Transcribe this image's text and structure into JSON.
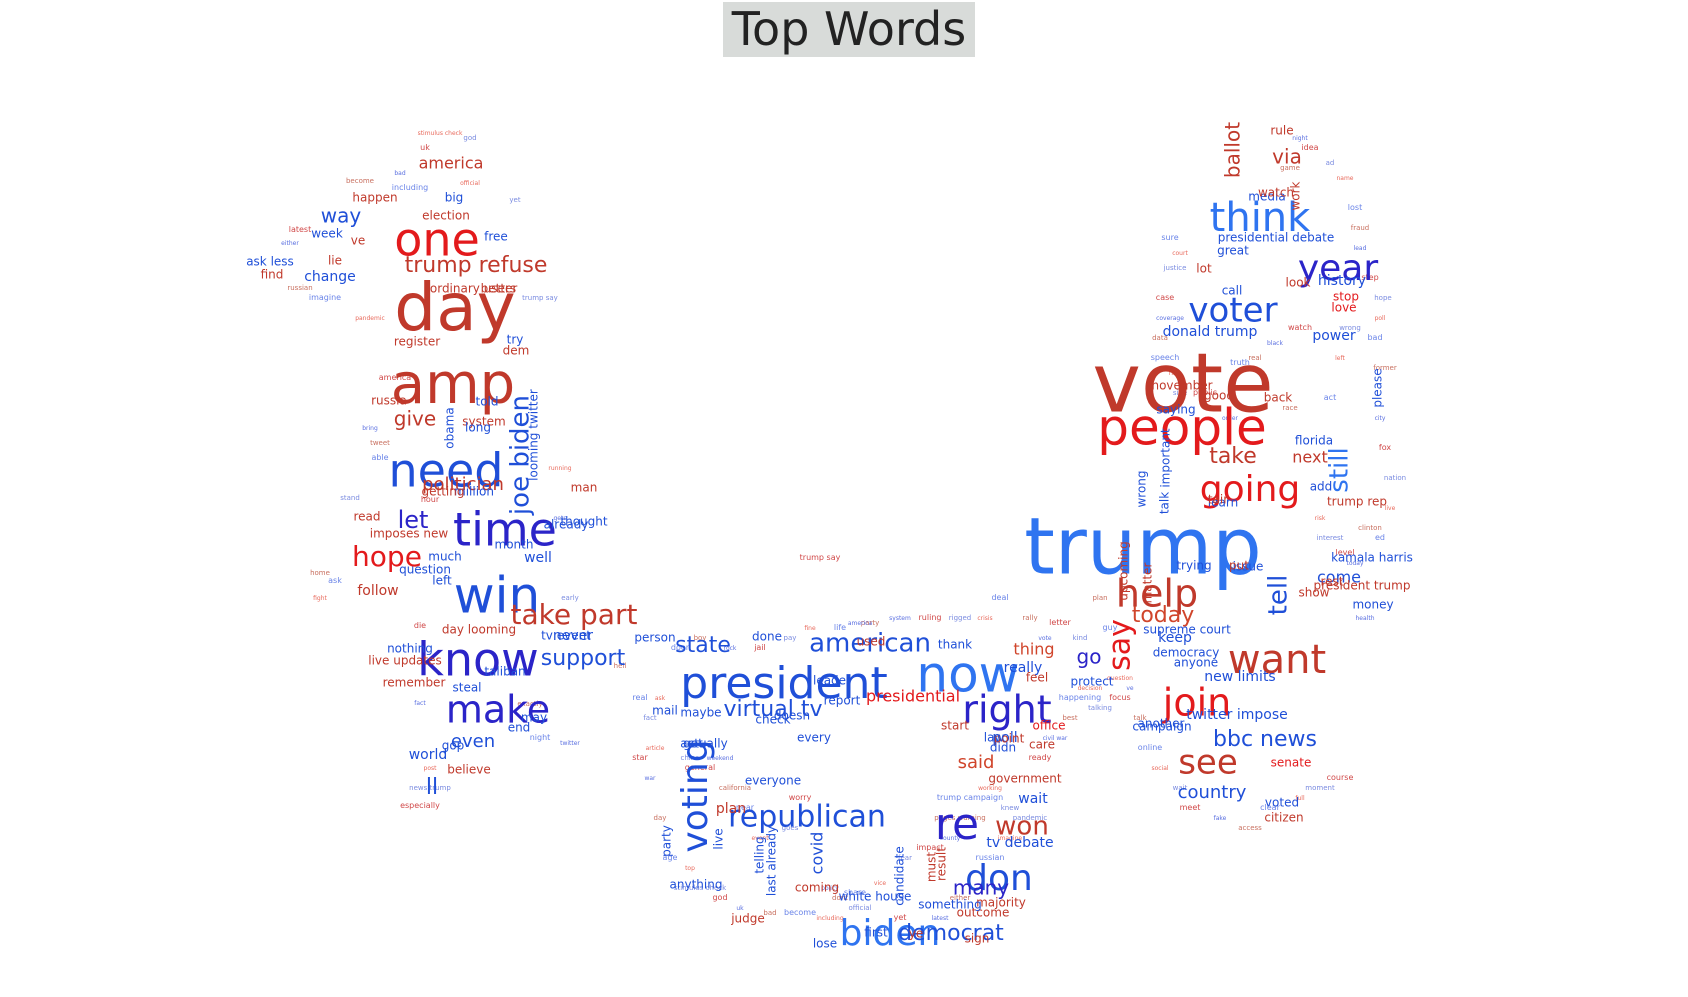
{
  "title": "Top Words",
  "colors": {
    "red": "#e31a1c",
    "darkred": "#c0392b",
    "blue": "#1f4fd8",
    "lightblue": "#2f74f0",
    "navy": "#2b24c8",
    "brick": "#d0452b"
  },
  "chart_data": {
    "type": "wordcloud",
    "title": "Top Words",
    "words": [
      {
        "text": "trump",
        "weight": 100,
        "color": "lightblue"
      },
      {
        "text": "vote",
        "weight": 90,
        "color": "darkred"
      },
      {
        "text": "day",
        "weight": 80,
        "color": "darkred"
      },
      {
        "text": "amp",
        "weight": 75,
        "color": "darkred"
      },
      {
        "text": "people",
        "weight": 70,
        "color": "red"
      },
      {
        "text": "president",
        "weight": 62,
        "color": "blue"
      },
      {
        "text": "now",
        "weight": 62,
        "color": "lightblue"
      },
      {
        "text": "need",
        "weight": 60,
        "color": "blue"
      },
      {
        "text": "time",
        "weight": 60,
        "color": "navy"
      },
      {
        "text": "win",
        "weight": 60,
        "color": "blue"
      },
      {
        "text": "know",
        "weight": 58,
        "color": "navy"
      },
      {
        "text": "one",
        "weight": 58,
        "color": "red"
      },
      {
        "text": "think",
        "weight": 55,
        "color": "lightblue"
      },
      {
        "text": "want",
        "weight": 52,
        "color": "darkred"
      },
      {
        "text": "help",
        "weight": 52,
        "color": "darkred"
      },
      {
        "text": "going",
        "weight": 52,
        "color": "red"
      },
      {
        "text": "re",
        "weight": 52,
        "color": "navy"
      },
      {
        "text": "year",
        "weight": 48,
        "color": "navy"
      },
      {
        "text": "voter",
        "weight": 46,
        "color": "blue"
      },
      {
        "text": "make",
        "weight": 46,
        "color": "navy"
      },
      {
        "text": "join",
        "weight": 46,
        "color": "red"
      },
      {
        "text": "voting",
        "weight": 46,
        "color": "blue"
      },
      {
        "text": "biden",
        "weight": 46,
        "color": "lightblue"
      },
      {
        "text": "right",
        "weight": 46,
        "color": "navy"
      },
      {
        "text": "don",
        "weight": 44,
        "color": "blue"
      },
      {
        "text": "see",
        "weight": 44,
        "color": "darkred"
      },
      {
        "text": "say",
        "weight": 42,
        "color": "red"
      },
      {
        "text": "take part",
        "weight": 40,
        "color": "darkred"
      },
      {
        "text": "joe biden",
        "weight": 36,
        "color": "blue"
      },
      {
        "text": "republican",
        "weight": 38,
        "color": "blue"
      },
      {
        "text": "american",
        "weight": 36,
        "color": "blue"
      },
      {
        "text": "hope",
        "weight": 34,
        "color": "red"
      },
      {
        "text": "let",
        "weight": 34,
        "color": "navy"
      },
      {
        "text": "won",
        "weight": 34,
        "color": "darkred"
      },
      {
        "text": "tell",
        "weight": 32,
        "color": "blue"
      },
      {
        "text": "still",
        "weight": 30,
        "color": "lightblue"
      },
      {
        "text": "today",
        "weight": 30,
        "color": "brick"
      },
      {
        "text": "trump refuse",
        "weight": 28,
        "color": "darkred"
      },
      {
        "text": "take",
        "weight": 28,
        "color": "darkred"
      },
      {
        "text": "democrat",
        "weight": 28,
        "color": "blue"
      },
      {
        "text": "bbc news",
        "weight": 28,
        "color": "blue"
      },
      {
        "text": "virtual tv",
        "weight": 28,
        "color": "blue"
      },
      {
        "text": "state",
        "weight": 28,
        "color": "blue"
      },
      {
        "text": "support",
        "weight": 28,
        "color": "blue"
      },
      {
        "text": "many",
        "weight": 28,
        "color": "navy"
      },
      {
        "text": "said",
        "weight": 26,
        "color": "brick"
      },
      {
        "text": "poll",
        "weight": 26,
        "color": "blue"
      },
      {
        "text": "country",
        "weight": 26,
        "color": "blue"
      },
      {
        "text": "give",
        "weight": 26,
        "color": "darkred"
      },
      {
        "text": "go",
        "weight": 26,
        "color": "navy"
      },
      {
        "text": "presidential",
        "weight": 26,
        "color": "red"
      },
      {
        "text": "ballot",
        "weight": 26,
        "color": "darkred"
      },
      {
        "text": "via",
        "weight": 26,
        "color": "darkred"
      },
      {
        "text": "politician",
        "weight": 24,
        "color": "darkred"
      },
      {
        "text": "even",
        "weight": 24,
        "color": "blue"
      },
      {
        "text": "thing",
        "weight": 24,
        "color": "brick"
      },
      {
        "text": "way",
        "weight": 24,
        "color": "blue"
      },
      {
        "text": "america",
        "weight": 22,
        "color": "darkred"
      },
      {
        "text": "next",
        "weight": 22,
        "color": "darkred"
      },
      {
        "text": "ll",
        "weight": 22,
        "color": "blue"
      },
      {
        "text": "come",
        "weight": 22,
        "color": "blue"
      },
      {
        "text": "covid",
        "weight": 20,
        "color": "blue"
      },
      {
        "text": "looming twitter",
        "weight": 18,
        "color": "blue"
      },
      {
        "text": "well",
        "weight": 18,
        "color": "blue"
      },
      {
        "text": "donald trump",
        "weight": 18,
        "color": "blue"
      },
      {
        "text": "presidential debate",
        "weight": 16,
        "color": "blue"
      },
      {
        "text": "history",
        "weight": 18,
        "color": "blue"
      },
      {
        "text": "look",
        "weight": 18,
        "color": "darkred"
      },
      {
        "text": "call",
        "weight": 18,
        "color": "blue"
      },
      {
        "text": "important",
        "weight": 18,
        "color": "blue"
      },
      {
        "text": "never",
        "weight": 18,
        "color": "blue"
      },
      {
        "text": "follow",
        "weight": 18,
        "color": "darkred"
      },
      {
        "text": "wait",
        "weight": 18,
        "color": "blue"
      },
      {
        "text": "tv debate",
        "weight": 18,
        "color": "blue"
      },
      {
        "text": "government",
        "weight": 16,
        "color": "darkred"
      },
      {
        "text": "point",
        "weight": 16,
        "color": "darkred"
      },
      {
        "text": "really",
        "weight": 16,
        "color": "blue"
      },
      {
        "text": "twitter impose",
        "weight": 16,
        "color": "blue"
      },
      {
        "text": "new limits",
        "weight": 16,
        "color": "blue"
      },
      {
        "text": "upcoming",
        "weight": 14,
        "color": "darkred"
      },
      {
        "text": "keep",
        "weight": 16,
        "color": "blue"
      },
      {
        "text": "world",
        "weight": 16,
        "color": "blue"
      },
      {
        "text": "believe",
        "weight": 16,
        "color": "darkred"
      },
      {
        "text": "plan",
        "weight": 16,
        "color": "darkred"
      },
      {
        "text": "lose",
        "weight": 14,
        "color": "blue"
      },
      {
        "text": "week",
        "weight": 16,
        "color": "blue"
      },
      {
        "text": "change",
        "weight": 16,
        "color": "blue"
      },
      {
        "text": "election",
        "weight": 14,
        "color": "darkred"
      },
      {
        "text": "happen",
        "weight": 14,
        "color": "darkred"
      },
      {
        "text": "better",
        "weight": 14,
        "color": "darkred"
      },
      {
        "text": "register",
        "weight": 14,
        "color": "darkred"
      },
      {
        "text": "russia",
        "weight": 14,
        "color": "darkred"
      },
      {
        "text": "system",
        "weight": 14,
        "color": "darkred"
      },
      {
        "text": "read",
        "weight": 14,
        "color": "darkred"
      },
      {
        "text": "imposes new",
        "weight": 14,
        "color": "darkred"
      },
      {
        "text": "much",
        "weight": 14,
        "color": "blue"
      },
      {
        "text": "question",
        "weight": 12,
        "color": "blue"
      },
      {
        "text": "day looming",
        "weight": 14,
        "color": "darkred"
      },
      {
        "text": "party",
        "weight": 14,
        "color": "blue"
      },
      {
        "text": "live",
        "weight": 14,
        "color": "blue"
      },
      {
        "text": "last already",
        "weight": 14,
        "color": "blue"
      },
      {
        "text": "candidate",
        "weight": 14,
        "color": "blue"
      },
      {
        "text": "result",
        "weight": 14,
        "color": "darkred"
      },
      {
        "text": "must",
        "weight": 14,
        "color": "darkred"
      },
      {
        "text": "outcome",
        "weight": 12,
        "color": "darkred"
      },
      {
        "text": "office",
        "weight": 14,
        "color": "red"
      },
      {
        "text": "leader",
        "weight": 14,
        "color": "blue"
      },
      {
        "text": "person",
        "weight": 14,
        "color": "blue"
      },
      {
        "text": "done",
        "weight": 14,
        "color": "blue"
      },
      {
        "text": "thank",
        "weight": 14,
        "color": "blue"
      },
      {
        "text": "mail",
        "weight": 14,
        "color": "blue"
      },
      {
        "text": "media",
        "weight": 12,
        "color": "blue"
      },
      {
        "text": "work",
        "weight": 12,
        "color": "darkred"
      },
      {
        "text": "stop",
        "weight": 14,
        "color": "red"
      },
      {
        "text": "love",
        "weight": 12,
        "color": "red"
      },
      {
        "text": "power",
        "weight": 14,
        "color": "blue"
      },
      {
        "text": "please",
        "weight": 14,
        "color": "blue"
      },
      {
        "text": "good",
        "weight": 14,
        "color": "darkred"
      },
      {
        "text": "back",
        "weight": 14,
        "color": "darkred"
      },
      {
        "text": "november",
        "weight": 12,
        "color": "darkred"
      },
      {
        "text": "saying",
        "weight": 12,
        "color": "blue"
      },
      {
        "text": "supreme court",
        "weight": 12,
        "color": "blue"
      },
      {
        "text": "issue",
        "weight": 14,
        "color": "blue"
      },
      {
        "text": "rest",
        "weight": 12,
        "color": "darkred"
      },
      {
        "text": "show",
        "weight": 14,
        "color": "darkred"
      },
      {
        "text": "democracy",
        "weight": 14,
        "color": "blue"
      },
      {
        "text": "anyone",
        "weight": 12,
        "color": "blue"
      },
      {
        "text": "another",
        "weight": 12,
        "color": "blue"
      },
      {
        "text": "campaign",
        "weight": 12,
        "color": "blue"
      },
      {
        "text": "voted",
        "weight": 12,
        "color": "blue"
      },
      {
        "text": "citizen",
        "weight": 12,
        "color": "darkred"
      },
      {
        "text": "senate",
        "weight": 14,
        "color": "red"
      },
      {
        "text": "trying",
        "weight": 14,
        "color": "blue"
      },
      {
        "text": "put",
        "weight": 12,
        "color": "darkred"
      },
      {
        "text": "talk",
        "weight": 12,
        "color": "blue"
      },
      {
        "text": "matter",
        "weight": 12,
        "color": "darkred"
      },
      {
        "text": "million",
        "weight": 12,
        "color": "blue"
      },
      {
        "text": "getting",
        "weight": 12,
        "color": "darkred"
      },
      {
        "text": "end",
        "weight": 12,
        "color": "blue"
      },
      {
        "text": "may",
        "weight": 14,
        "color": "blue"
      },
      {
        "text": "gop",
        "weight": 14,
        "color": "blue"
      },
      {
        "text": "remember",
        "weight": 12,
        "color": "darkred"
      },
      {
        "text": "nothing",
        "weight": 12,
        "color": "blue"
      },
      {
        "text": "live updates",
        "weight": 12,
        "color": "darkred"
      },
      {
        "text": "taliban",
        "weight": 12,
        "color": "blue"
      },
      {
        "text": "steal",
        "weight": 12,
        "color": "blue"
      },
      {
        "text": "free",
        "weight": 12,
        "color": "blue"
      },
      {
        "text": "ordinary users",
        "weight": 12,
        "color": "darkred"
      },
      {
        "text": "ask less",
        "weight": 12,
        "color": "blue"
      },
      {
        "text": "find",
        "weight": 12,
        "color": "darkred"
      },
      {
        "text": "lie",
        "weight": 12,
        "color": "darkred"
      },
      {
        "text": "ve",
        "weight": 12,
        "color": "darkred"
      },
      {
        "text": "big",
        "weight": 12,
        "color": "blue"
      },
      {
        "text": "rule",
        "weight": 12,
        "color": "darkred"
      },
      {
        "text": "watch",
        "weight": 12,
        "color": "darkred"
      },
      {
        "text": "great",
        "weight": 12,
        "color": "blue"
      },
      {
        "text": "lot",
        "weight": 12,
        "color": "darkred"
      },
      {
        "text": "learn",
        "weight": 12,
        "color": "blue"
      },
      {
        "text": "care",
        "weight": 12,
        "color": "darkred"
      },
      {
        "text": "anything",
        "weight": 12,
        "color": "blue"
      },
      {
        "text": "judge",
        "weight": 12,
        "color": "darkred"
      },
      {
        "text": "doesn",
        "weight": 12,
        "color": "blue"
      },
      {
        "text": "coming",
        "weight": 12,
        "color": "darkred"
      },
      {
        "text": "majority",
        "weight": 12,
        "color": "darkred"
      },
      {
        "text": "something",
        "weight": 12,
        "color": "blue"
      },
      {
        "text": "telling",
        "weight": 12,
        "color": "blue"
      },
      {
        "text": "man",
        "weight": 12,
        "color": "darkred"
      },
      {
        "text": "thought",
        "weight": 12,
        "color": "blue"
      },
      {
        "text": "already",
        "weight": 12,
        "color": "blue"
      },
      {
        "text": "month",
        "weight": 12,
        "color": "blue"
      },
      {
        "text": "try",
        "weight": 12,
        "color": "blue"
      },
      {
        "text": "dem",
        "weight": 12,
        "color": "darkred"
      },
      {
        "text": "long",
        "weight": 12,
        "color": "blue"
      },
      {
        "text": "obama",
        "weight": 12,
        "color": "blue"
      },
      {
        "text": "told",
        "weight": 12,
        "color": "blue"
      },
      {
        "text": "feel",
        "weight": 12,
        "color": "darkred"
      },
      {
        "text": "protect",
        "weight": 12,
        "color": "blue"
      },
      {
        "text": "every",
        "weight": 12,
        "color": "blue"
      },
      {
        "text": "start",
        "weight": 12,
        "color": "darkred"
      },
      {
        "text": "law",
        "weight": 12,
        "color": "blue"
      },
      {
        "text": "didn",
        "weight": 12,
        "color": "blue"
      },
      {
        "text": "report",
        "weight": 12,
        "color": "blue"
      },
      {
        "text": "used",
        "weight": 12,
        "color": "darkred"
      },
      {
        "text": "check",
        "weight": 12,
        "color": "blue"
      },
      {
        "text": "everyone",
        "weight": 12,
        "color": "blue"
      },
      {
        "text": "white house",
        "weight": 12,
        "color": "blue"
      },
      {
        "text": "first",
        "weight": 12,
        "color": "blue"
      },
      {
        "text": "ye",
        "weight": 12,
        "color": "darkred"
      },
      {
        "text": "sign",
        "weight": 12,
        "color": "darkred"
      },
      {
        "text": "tv event",
        "weight": 12,
        "color": "blue"
      },
      {
        "text": "left",
        "weight": 12,
        "color": "blue"
      },
      {
        "text": "got",
        "weight": 12,
        "color": "blue"
      },
      {
        "text": "maybe",
        "weight": 12,
        "color": "blue"
      },
      {
        "text": "actually",
        "weight": 12,
        "color": "blue"
      },
      {
        "text": "wrong",
        "weight": 12,
        "color": "blue"
      },
      {
        "text": "trump rep",
        "weight": 12,
        "color": "darkred"
      },
      {
        "text": "tair",
        "weight": 12,
        "color": "darkred"
      },
      {
        "text": "add",
        "weight": 12,
        "color": "blue"
      },
      {
        "text": "florida",
        "weight": 12,
        "color": "blue"
      },
      {
        "text": "kamala harris",
        "weight": 12,
        "color": "blue"
      },
      {
        "text": "president trump",
        "weight": 12,
        "color": "darkred"
      },
      {
        "text": "money",
        "weight": 12,
        "color": "blue"
      },
      {
        "text": "chance",
        "weight": 12,
        "color": "darkred"
      },
      {
        "text": "facebook",
        "weight": 12,
        "color": "blue"
      },
      {
        "text": "mean",
        "weight": 12,
        "color": "darkred"
      },
      {
        "text": "possible",
        "weight": 12,
        "color": "darkred"
      }
    ]
  }
}
